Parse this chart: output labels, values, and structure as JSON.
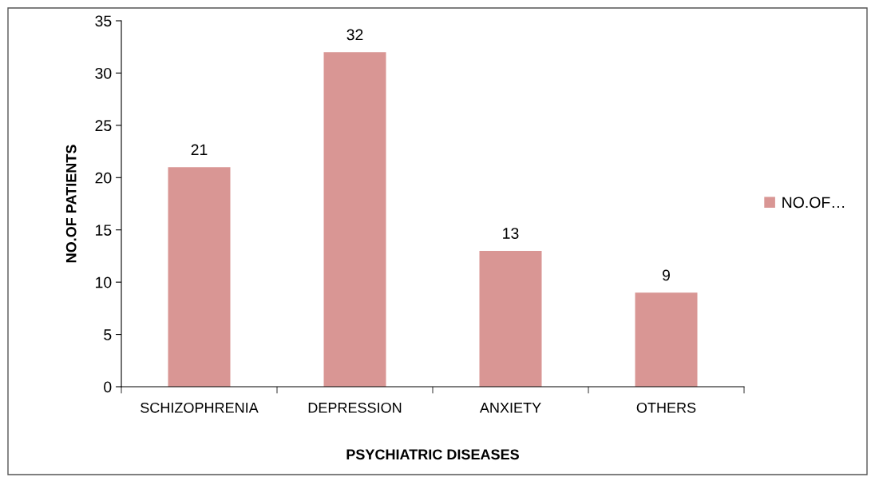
{
  "chart_data": {
    "type": "bar",
    "xlabel": "PSYCHIATRIC DISEASES",
    "ylabel": "NO.OF PATIENTS",
    "categories": [
      "SCHIZOPHRENIA",
      "DEPRESSION",
      "ANXIETY",
      "OTHERS"
    ],
    "series": [
      {
        "name": "NO.OF…",
        "color": "#d99694",
        "values": [
          21,
          32,
          13,
          9
        ]
      }
    ],
    "ylim": [
      0,
      35
    ],
    "yticks": [
      0,
      5,
      10,
      15,
      20,
      25,
      30,
      35
    ],
    "data_labels": true,
    "grid": false,
    "legend": "right"
  }
}
